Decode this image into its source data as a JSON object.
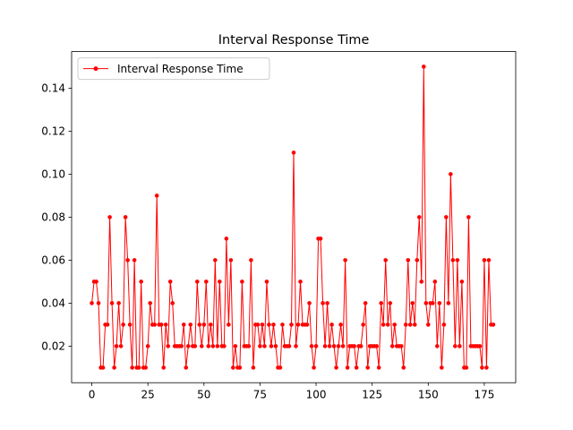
{
  "chart_data": {
    "type": "line",
    "title": "Interval Response Time",
    "xlabel": "",
    "ylabel": "",
    "xlim": [
      -9,
      189
    ],
    "ylim": [
      0.003,
      0.157
    ],
    "xticks": [
      0,
      25,
      50,
      75,
      100,
      125,
      150,
      175
    ],
    "yticks": [
      0.02,
      0.04,
      0.06,
      0.08,
      0.1,
      0.12,
      0.14
    ],
    "ytick_labels": [
      "0.02",
      "0.04",
      "0.06",
      "0.08",
      "0.10",
      "0.12",
      "0.14"
    ],
    "grid": false,
    "legend_position": "upper-left",
    "series": [
      {
        "name": "Interval Response Time",
        "color": "#ff0000",
        "marker": "circle",
        "x": [
          0,
          1,
          2,
          3,
          4,
          5,
          6,
          7,
          8,
          9,
          10,
          11,
          12,
          13,
          14,
          15,
          16,
          17,
          18,
          19,
          20,
          21,
          22,
          23,
          24,
          25,
          26,
          27,
          28,
          29,
          30,
          31,
          32,
          33,
          34,
          35,
          36,
          37,
          38,
          39,
          40,
          41,
          42,
          43,
          44,
          45,
          46,
          47,
          48,
          49,
          50,
          51,
          52,
          53,
          54,
          55,
          56,
          57,
          58,
          59,
          60,
          61,
          62,
          63,
          64,
          65,
          66,
          67,
          68,
          69,
          70,
          71,
          72,
          73,
          74,
          75,
          76,
          77,
          78,
          79,
          80,
          81,
          82,
          83,
          84,
          85,
          86,
          87,
          88,
          89,
          90,
          91,
          92,
          93,
          94,
          95,
          96,
          97,
          98,
          99,
          100,
          101,
          102,
          103,
          104,
          105,
          106,
          107,
          108,
          109,
          110,
          111,
          112,
          113,
          114,
          115,
          116,
          117,
          118,
          119,
          120,
          121,
          122,
          123,
          124,
          125,
          126,
          127,
          128,
          129,
          130,
          131,
          132,
          133,
          134,
          135,
          136,
          137,
          138,
          139,
          140,
          141,
          142,
          143,
          144,
          145,
          146,
          147,
          148,
          149,
          150,
          151,
          152,
          153,
          154,
          155,
          156,
          157,
          158,
          159,
          160,
          161,
          162,
          163,
          164,
          165,
          166,
          167,
          168,
          169,
          170,
          171,
          172,
          173,
          174,
          175,
          176,
          177,
          178,
          179
        ],
        "y": [
          0.04,
          0.05,
          0.05,
          0.04,
          0.01,
          0.01,
          0.03,
          0.03,
          0.08,
          0.04,
          0.01,
          0.02,
          0.04,
          0.02,
          0.03,
          0.08,
          0.06,
          0.03,
          0.01,
          0.06,
          0.01,
          0.01,
          0.05,
          0.01,
          0.01,
          0.02,
          0.04,
          0.03,
          0.03,
          0.09,
          0.03,
          0.03,
          0.01,
          0.03,
          0.02,
          0.05,
          0.04,
          0.02,
          0.02,
          0.02,
          0.02,
          0.03,
          0.01,
          0.02,
          0.03,
          0.02,
          0.02,
          0.05,
          0.03,
          0.02,
          0.03,
          0.05,
          0.02,
          0.03,
          0.02,
          0.06,
          0.02,
          0.05,
          0.02,
          0.02,
          0.07,
          0.03,
          0.06,
          0.01,
          0.02,
          0.01,
          0.01,
          0.05,
          0.02,
          0.02,
          0.02,
          0.06,
          0.01,
          0.03,
          0.03,
          0.02,
          0.03,
          0.02,
          0.05,
          0.03,
          0.02,
          0.03,
          0.02,
          0.01,
          0.01,
          0.03,
          0.02,
          0.02,
          0.02,
          0.03,
          0.11,
          0.02,
          0.03,
          0.05,
          0.03,
          0.03,
          0.03,
          0.04,
          0.02,
          0.01,
          0.02,
          0.07,
          0.07,
          0.04,
          0.02,
          0.04,
          0.02,
          0.03,
          0.02,
          0.01,
          0.02,
          0.03,
          0.02,
          0.06,
          0.01,
          0.02,
          0.02,
          0.02,
          0.01,
          0.02,
          0.02,
          0.03,
          0.04,
          0.01,
          0.02,
          0.02,
          0.02,
          0.02,
          0.01,
          0.04,
          0.03,
          0.06,
          0.03,
          0.04,
          0.02,
          0.03,
          0.02,
          0.02,
          0.02,
          0.01,
          0.03,
          0.06,
          0.03,
          0.04,
          0.03,
          0.06,
          0.08,
          0.05,
          0.15,
          0.04,
          0.03,
          0.04,
          0.04,
          0.05,
          0.02,
          0.04,
          0.01,
          0.03,
          0.08,
          0.04,
          0.1,
          0.06,
          0.02,
          0.06,
          0.02,
          0.05,
          0.01,
          0.01,
          0.08,
          0.02,
          0.02,
          0.02,
          0.02,
          0.02,
          0.01,
          0.06,
          0.01,
          0.06,
          0.03,
          0.03
        ]
      }
    ]
  }
}
